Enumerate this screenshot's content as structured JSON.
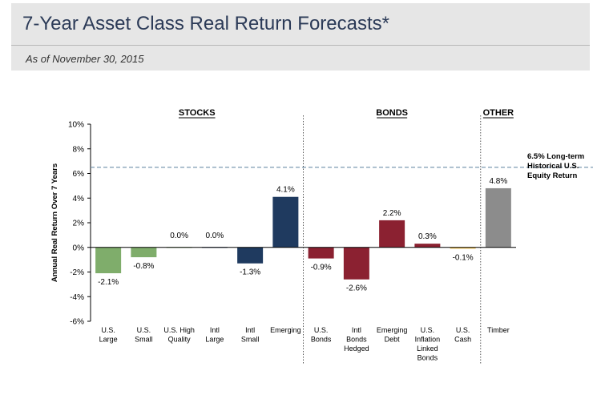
{
  "header": {
    "title": "7-Year Asset Class Real Return Forecasts*",
    "subtitle": "As of  November 30, 2015"
  },
  "chart_data": {
    "type": "bar",
    "title": "7-Year Asset Class Real Return Forecasts*",
    "subtitle": "As of  November 30, 2015",
    "ylabel": "Annual Real Return Over 7 Years",
    "xlabel": "",
    "ylim": [
      -6,
      10
    ],
    "yticks": [
      -6,
      -4,
      -2,
      0,
      2,
      4,
      6,
      8,
      10
    ],
    "ytick_labels": [
      "-6%",
      "-4%",
      "-2%",
      "0%",
      "2%",
      "4%",
      "6%",
      "8%",
      "10%"
    ],
    "grid": false,
    "groups": [
      {
        "label": "STOCKS",
        "start": 0,
        "end": 5
      },
      {
        "label": "BONDS",
        "start": 6,
        "end": 10
      },
      {
        "label": "OTHER",
        "start": 11,
        "end": 11
      }
    ],
    "categories": [
      [
        "U.S.",
        "Large"
      ],
      [
        "U.S.",
        "Small"
      ],
      [
        "U.S. High",
        "Quality"
      ],
      [
        "Intl",
        "Large"
      ],
      [
        "Intl",
        "Small"
      ],
      [
        "Emerging"
      ],
      [
        "U.S.",
        "Bonds"
      ],
      [
        "Intl",
        "Bonds",
        "Hedged"
      ],
      [
        "Emerging",
        "Debt"
      ],
      [
        "U.S.",
        "Inflation",
        "Linked",
        "Bonds"
      ],
      [
        "U.S.",
        "Cash"
      ],
      [
        "Timber"
      ]
    ],
    "values": [
      -2.1,
      -0.8,
      0.0,
      0.0,
      -1.3,
      4.1,
      -0.9,
      -2.6,
      2.2,
      0.3,
      -0.1,
      4.8
    ],
    "value_labels": [
      "-2.1%",
      "-0.8%",
      "0.0%",
      "0.0%",
      "-1.3%",
      "4.1%",
      "-0.9%",
      "-2.6%",
      "2.2%",
      "0.3%",
      "-0.1%",
      "4.8%"
    ],
    "bar_colors": [
      "#7fad6b",
      "#7fad6b",
      "#7fad6b",
      "#1f3a5f",
      "#1f3a5f",
      "#1f3a5f",
      "#8b2131",
      "#8b2131",
      "#8b2131",
      "#8b2131",
      "#e9b43a",
      "#8c8c8c"
    ],
    "reference_line": {
      "value": 6.5,
      "label_lines": [
        "6.5% Long-term",
        "Historical U.S.",
        "Equity Return"
      ],
      "color": "#6f8fa8"
    }
  }
}
